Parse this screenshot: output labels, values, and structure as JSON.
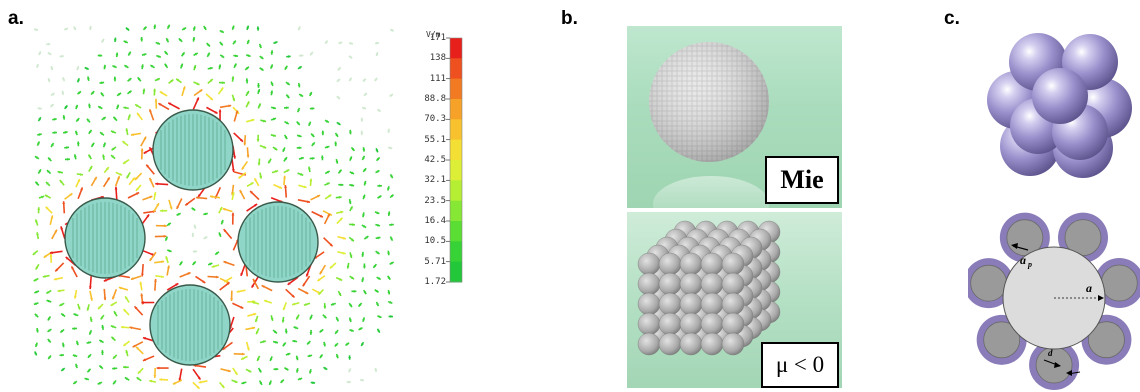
{
  "panels": {
    "a": {
      "label": "a."
    },
    "b": {
      "label": "b."
    },
    "c": {
      "label": "c."
    }
  },
  "colorbar": {
    "unit": "V/m",
    "ticks": [
      "171",
      "138",
      "111",
      "88.8",
      "70.3",
      "55.1",
      "42.5",
      "32.1",
      "23.5",
      "16.4",
      "10.5",
      "5.71",
      "1.72"
    ],
    "colors": [
      "#e8201c",
      "#ee5020",
      "#f27a22",
      "#f6a128",
      "#f8c22e",
      "#f4df34",
      "#dcee36",
      "#b6ee34",
      "#86e834",
      "#5ade34",
      "#36d236",
      "#22c83a"
    ]
  },
  "panel_b": {
    "top_label": "Mie",
    "bottom_label": "μ < 0"
  },
  "panel_c": {
    "ap_label": "a",
    "ap_subscript": "p",
    "a_label": "a",
    "d_label": "d"
  },
  "colors": {
    "sphere_purple": "#8f86c4",
    "ring_purple": "#8a7cb8",
    "inner_gray": "#9a9a9a",
    "center_gray": "#dcdcdc",
    "field_sphere": "#8fd6c8"
  }
}
